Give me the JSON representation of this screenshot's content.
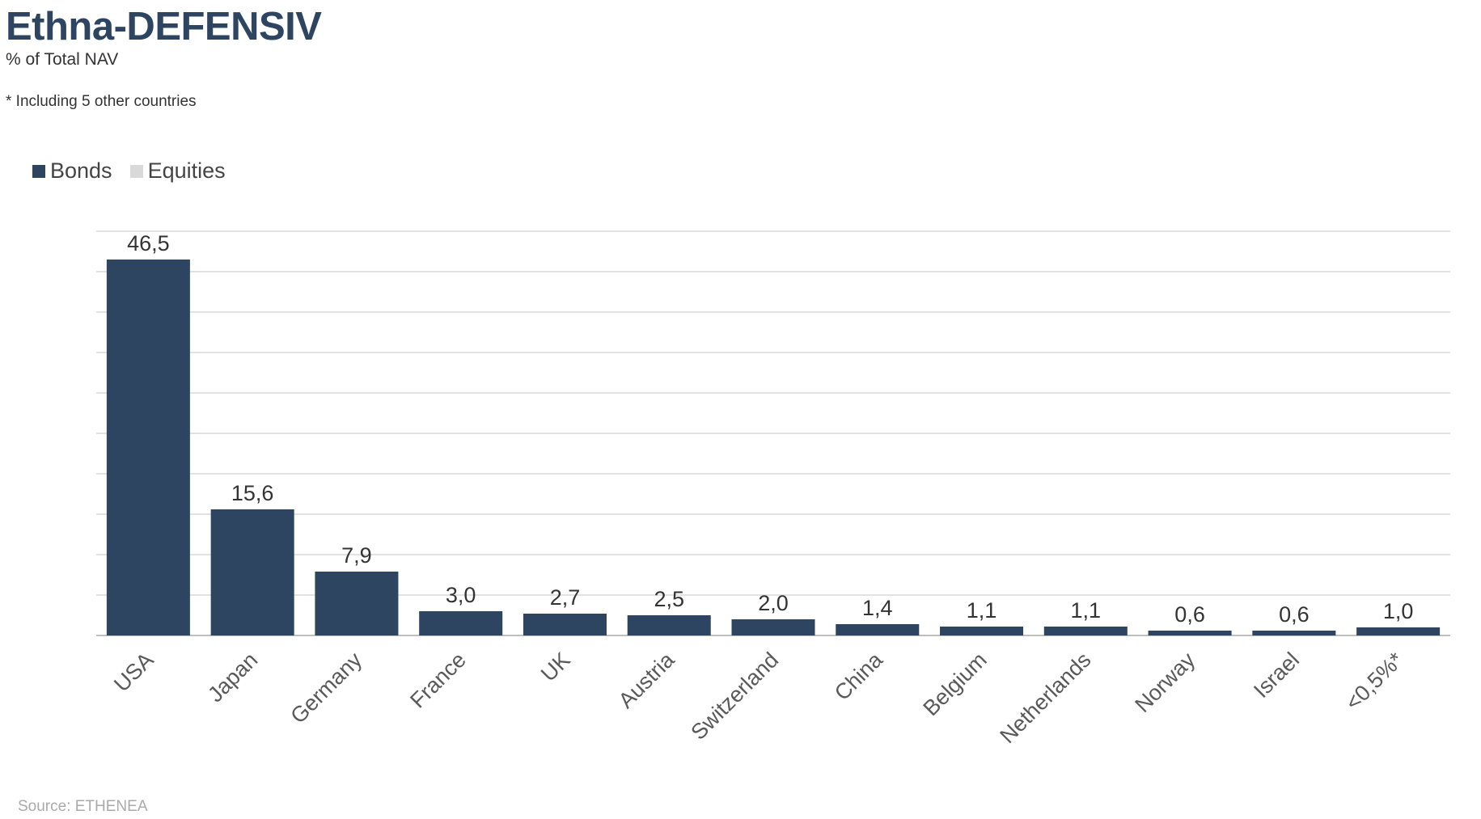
{
  "header": {
    "title": "Ethna-DEFENSIV",
    "subtitle": "% of Total NAV",
    "footnote": "* Including 5 other countries"
  },
  "legend": {
    "items": [
      {
        "label": "Bonds",
        "color": "#2e4562"
      },
      {
        "label": "Equities",
        "color": "#d9d9d9"
      }
    ]
  },
  "source": "Source: ETHENEA",
  "chart_data": {
    "type": "bar",
    "categories": [
      "USA",
      "Japan",
      "Germany",
      "France",
      "UK",
      "Austria",
      "Switzerland",
      "China",
      "Belgium",
      "Netherlands",
      "Norway",
      "Israel",
      "<0,5%*"
    ],
    "series": [
      {
        "name": "Bonds",
        "color": "#2e4562",
        "values": [
          46.5,
          15.6,
          7.9,
          3.0,
          2.7,
          2.5,
          2.0,
          1.4,
          1.1,
          1.1,
          0.6,
          0.6,
          1.0
        ]
      },
      {
        "name": "Equities",
        "color": "#d9d9d9",
        "values": [
          0,
          0,
          0,
          0,
          0,
          0,
          0,
          0,
          0,
          0,
          0,
          0,
          0
        ]
      }
    ],
    "data_labels": [
      "46,5",
      "15,6",
      "7,9",
      "3,0",
      "2,7",
      "2,5",
      "2,0",
      "1,4",
      "1,1",
      "1,1",
      "0,6",
      "0,6",
      "1,0"
    ],
    "ylim": [
      0,
      50
    ],
    "grid": true,
    "legend_position": "top-left"
  }
}
